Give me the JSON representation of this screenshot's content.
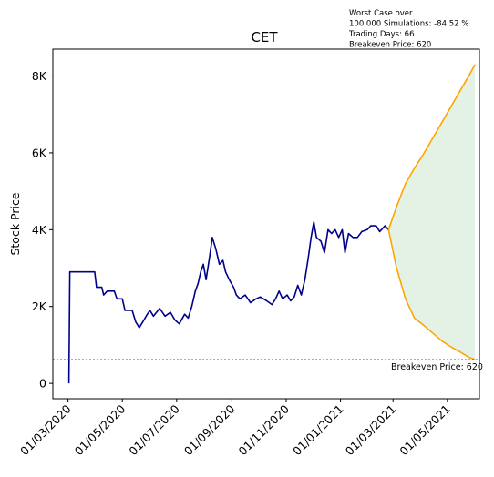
{
  "chart_data": {
    "type": "line",
    "title": "CET",
    "xlabel": "",
    "ylabel": "Stock Price",
    "ylim": [
      -400,
      8700
    ],
    "yticks": [
      {
        "value": 0,
        "label": "0"
      },
      {
        "value": 2000,
        "label": "2K"
      },
      {
        "value": 4000,
        "label": "4K"
      },
      {
        "value": 6000,
        "label": "6K"
      },
      {
        "value": 8000,
        "label": "8K"
      }
    ],
    "xlim": [
      "2020-02-13",
      "2021-06-06"
    ],
    "xticks": [
      {
        "value": "2020-03-01",
        "label": "01/03/2020"
      },
      {
        "value": "2020-05-01",
        "label": "01/05/2020"
      },
      {
        "value": "2020-07-01",
        "label": "01/07/2020"
      },
      {
        "value": "2020-09-01",
        "label": "01/09/2020"
      },
      {
        "value": "2020-11-01",
        "label": "01/11/2020"
      },
      {
        "value": "2021-01-01",
        "label": "01/01/2021"
      },
      {
        "value": "2021-03-01",
        "label": "01/03/2021"
      },
      {
        "value": "2021-05-01",
        "label": "01/05/2021"
      }
    ],
    "grid": false,
    "annotation_lines": [
      "Worst Case over",
      "100,000 Simulations: -84.52 %",
      "Trading Days: 66",
      "Breakeven Price: 620"
    ],
    "breakeven": {
      "value": 620,
      "label": "Breakeven Price: 620",
      "color": "#d62728"
    },
    "history": {
      "color": "#00008b",
      "points": [
        [
          "2020-03-02",
          0
        ],
        [
          "2020-03-03",
          2900
        ],
        [
          "2020-03-20",
          2900
        ],
        [
          "2020-03-31",
          2900
        ],
        [
          "2020-04-02",
          2500
        ],
        [
          "2020-04-08",
          2500
        ],
        [
          "2020-04-10",
          2300
        ],
        [
          "2020-04-14",
          2400
        ],
        [
          "2020-04-22",
          2400
        ],
        [
          "2020-04-25",
          2200
        ],
        [
          "2020-05-01",
          2200
        ],
        [
          "2020-05-04",
          1900
        ],
        [
          "2020-05-12",
          1900
        ],
        [
          "2020-05-16",
          1600
        ],
        [
          "2020-05-20",
          1450
        ],
        [
          "2020-05-24",
          1600
        ],
        [
          "2020-05-29",
          1800
        ],
        [
          "2020-06-01",
          1900
        ],
        [
          "2020-06-05",
          1750
        ],
        [
          "2020-06-12",
          1950
        ],
        [
          "2020-06-18",
          1750
        ],
        [
          "2020-06-24",
          1850
        ],
        [
          "2020-06-29",
          1650
        ],
        [
          "2020-07-04",
          1550
        ],
        [
          "2020-07-10",
          1800
        ],
        [
          "2020-07-14",
          1700
        ],
        [
          "2020-07-18",
          2000
        ],
        [
          "2020-07-22",
          2400
        ],
        [
          "2020-07-25",
          2600
        ],
        [
          "2020-07-28",
          2900
        ],
        [
          "2020-07-31",
          3100
        ],
        [
          "2020-08-03",
          2700
        ],
        [
          "2020-08-07",
          3300
        ],
        [
          "2020-08-10",
          3800
        ],
        [
          "2020-08-14",
          3500
        ],
        [
          "2020-08-18",
          3100
        ],
        [
          "2020-08-22",
          3200
        ],
        [
          "2020-08-25",
          2900
        ],
        [
          "2020-08-29",
          2700
        ],
        [
          "2020-09-03",
          2500
        ],
        [
          "2020-09-06",
          2300
        ],
        [
          "2020-09-10",
          2200
        ],
        [
          "2020-09-16",
          2300
        ],
        [
          "2020-09-22",
          2100
        ],
        [
          "2020-09-28",
          2200
        ],
        [
          "2020-10-03",
          2250
        ],
        [
          "2020-10-10",
          2150
        ],
        [
          "2020-10-16",
          2050
        ],
        [
          "2020-10-20",
          2200
        ],
        [
          "2020-10-24",
          2400
        ],
        [
          "2020-10-28",
          2200
        ],
        [
          "2020-11-02",
          2300
        ],
        [
          "2020-11-06",
          2150
        ],
        [
          "2020-11-10",
          2250
        ],
        [
          "2020-11-14",
          2550
        ],
        [
          "2020-11-18",
          2300
        ],
        [
          "2020-11-22",
          2700
        ],
        [
          "2020-11-26",
          3300
        ],
        [
          "2020-11-29",
          3800
        ],
        [
          "2020-12-02",
          4200
        ],
        [
          "2020-12-05",
          3800
        ],
        [
          "2020-12-10",
          3700
        ],
        [
          "2020-12-14",
          3400
        ],
        [
          "2020-12-18",
          4000
        ],
        [
          "2020-12-22",
          3900
        ],
        [
          "2020-12-26",
          4000
        ],
        [
          "2020-12-30",
          3800
        ],
        [
          "2021-01-03",
          4000
        ],
        [
          "2021-01-06",
          3400
        ],
        [
          "2021-01-10",
          3900
        ],
        [
          "2021-01-15",
          3800
        ],
        [
          "2021-01-20",
          3800
        ],
        [
          "2021-01-25",
          3950
        ],
        [
          "2021-01-31",
          4000
        ],
        [
          "2021-02-04",
          4100
        ],
        [
          "2021-02-10",
          4100
        ],
        [
          "2021-02-14",
          3950
        ],
        [
          "2021-02-20",
          4100
        ],
        [
          "2021-02-24",
          4000
        ]
      ]
    },
    "best_case": {
      "color": "#ffa500",
      "points": [
        [
          "2021-02-24",
          4000
        ],
        [
          "2021-03-05",
          4600
        ],
        [
          "2021-03-15",
          5200
        ],
        [
          "2021-03-25",
          5600
        ],
        [
          "2021-04-05",
          6000
        ],
        [
          "2021-04-15",
          6400
        ],
        [
          "2021-04-25",
          6800
        ],
        [
          "2021-05-05",
          7200
        ],
        [
          "2021-05-15",
          7600
        ],
        [
          "2021-05-25",
          8000
        ],
        [
          "2021-06-01",
          8300
        ]
      ]
    },
    "worst_case": {
      "color": "#ffa500",
      "points": [
        [
          "2021-02-24",
          4000
        ],
        [
          "2021-03-05",
          3000
        ],
        [
          "2021-03-15",
          2200
        ],
        [
          "2021-03-25",
          1700
        ],
        [
          "2021-04-05",
          1500
        ],
        [
          "2021-04-15",
          1300
        ],
        [
          "2021-04-25",
          1100
        ],
        [
          "2021-05-05",
          950
        ],
        [
          "2021-05-15",
          820
        ],
        [
          "2021-05-25",
          680
        ],
        [
          "2021-06-01",
          620
        ]
      ]
    },
    "fill": {
      "color": "#c8e6c9",
      "between": [
        "worst_case",
        "best_case"
      ]
    }
  }
}
